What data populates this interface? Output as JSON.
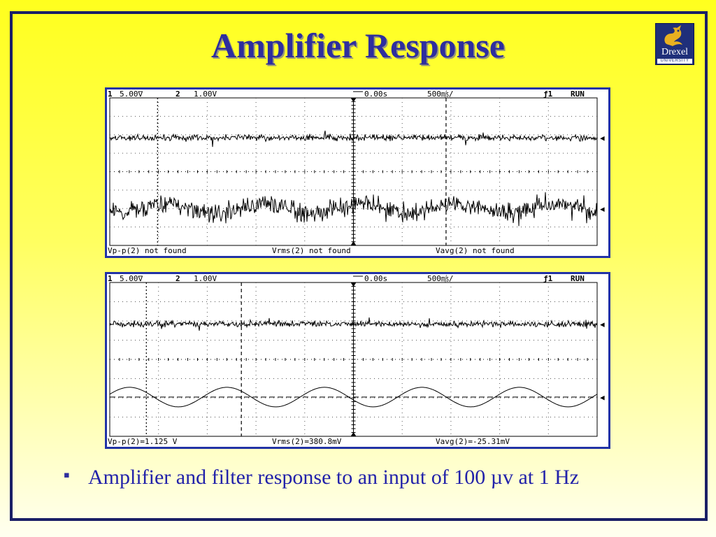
{
  "title": "Amplifier Response",
  "logo": {
    "name": "Drexel",
    "sub": "UNIVERSITY"
  },
  "caption": "Amplifier and filter response to an input of 100 µv at 1 Hz",
  "bullet_glyph": "▪",
  "scopes": [
    {
      "header": {
        "ch1": "1",
        "ch1_scale": "5.00∇",
        "ch2": "2",
        "ch2_scale": "1.00V",
        "time_offset": "0.00s",
        "time_div": "500㎧/",
        "trigger": "ƒ1",
        "mode": "RUN"
      },
      "footer": {
        "vpp": "Vp-p(2)  not  found",
        "vrms": "Vrms(2)  not  found",
        "vavg": "Vavg(2)  not  found"
      }
    },
    {
      "header": {
        "ch1": "1",
        "ch1_scale": "5.00∇",
        "ch2": "2",
        "ch2_scale": "1.00V",
        "time_offset": "0.00s",
        "time_div": "500㎧/",
        "trigger": "ƒ1",
        "mode": "RUN"
      },
      "footer": {
        "vpp": "Vp-p(2)=1.125  V",
        "vrms": "Vrms(2)=380.8mV",
        "vavg": "Vavg(2)=-25.31mV"
      }
    }
  ],
  "chart_data": [
    {
      "type": "line",
      "title": "",
      "series": [
        {
          "channel": "1",
          "description": "noisy baseline, no clear periodic signal"
        },
        {
          "channel": "2",
          "description": "high-amplitude noise, signal not detected"
        }
      ],
      "measurements": {
        "vpp2": "not found",
        "vrms2": "not found",
        "vavg2": "not found"
      }
    },
    {
      "type": "line",
      "title": "",
      "series": [
        {
          "channel": "1",
          "description": "noisy baseline"
        },
        {
          "channel": "2",
          "description": "filtered sine, ~1 Hz",
          "cycles_on_screen": 5,
          "vpp": 1.125,
          "vrms_mV": 380.8,
          "vavg_mV": -25.31
        }
      ],
      "measurements": {
        "vpp2": "1.125 V",
        "vrms2": "380.8mV",
        "vavg2": "-25.31mV"
      }
    }
  ]
}
